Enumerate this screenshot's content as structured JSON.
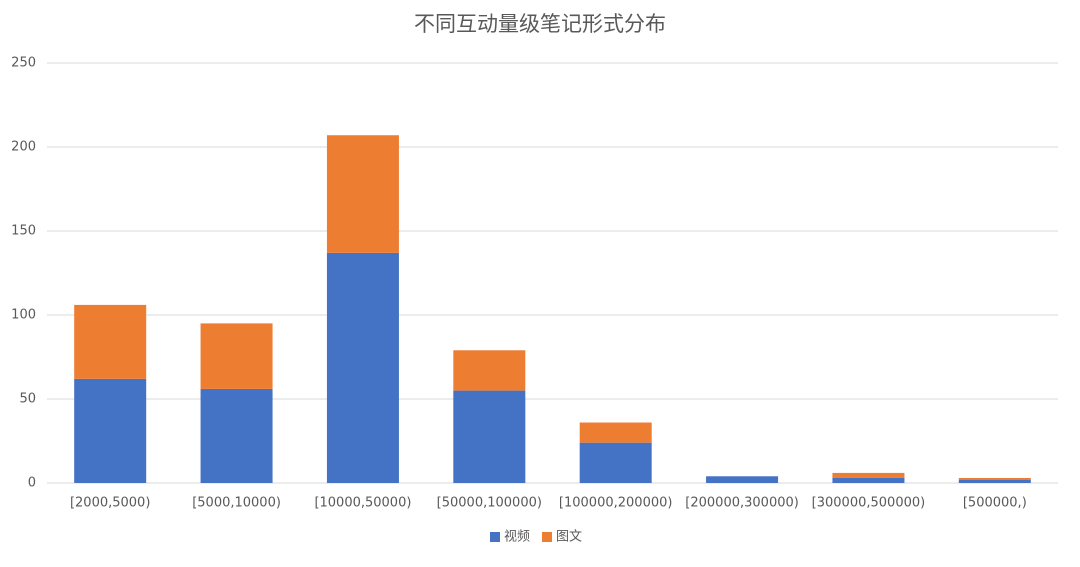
{
  "chart_data": {
    "type": "stacked_bar",
    "title": "不同互动量级笔记形式分布",
    "categories": [
      "[2000,5000)",
      "[5000,10000)",
      "[10000,50000)",
      "[50000,100000)",
      "[100000,200000)",
      "[200000,300000)",
      "[300000,500000)",
      "[500000,)"
    ],
    "series": [
      {
        "name": "视频",
        "color": "#4472c4",
        "values": [
          62,
          56,
          137,
          55,
          24,
          4,
          3,
          2
        ]
      },
      {
        "name": "图文",
        "color": "#ed7d31",
        "values": [
          44,
          39,
          70,
          24,
          12,
          0,
          3,
          1
        ]
      }
    ],
    "ylim": [
      0,
      250
    ],
    "yticks": [
      0,
      50,
      100,
      150,
      200,
      250
    ],
    "grid": true,
    "legend": "bottom"
  }
}
